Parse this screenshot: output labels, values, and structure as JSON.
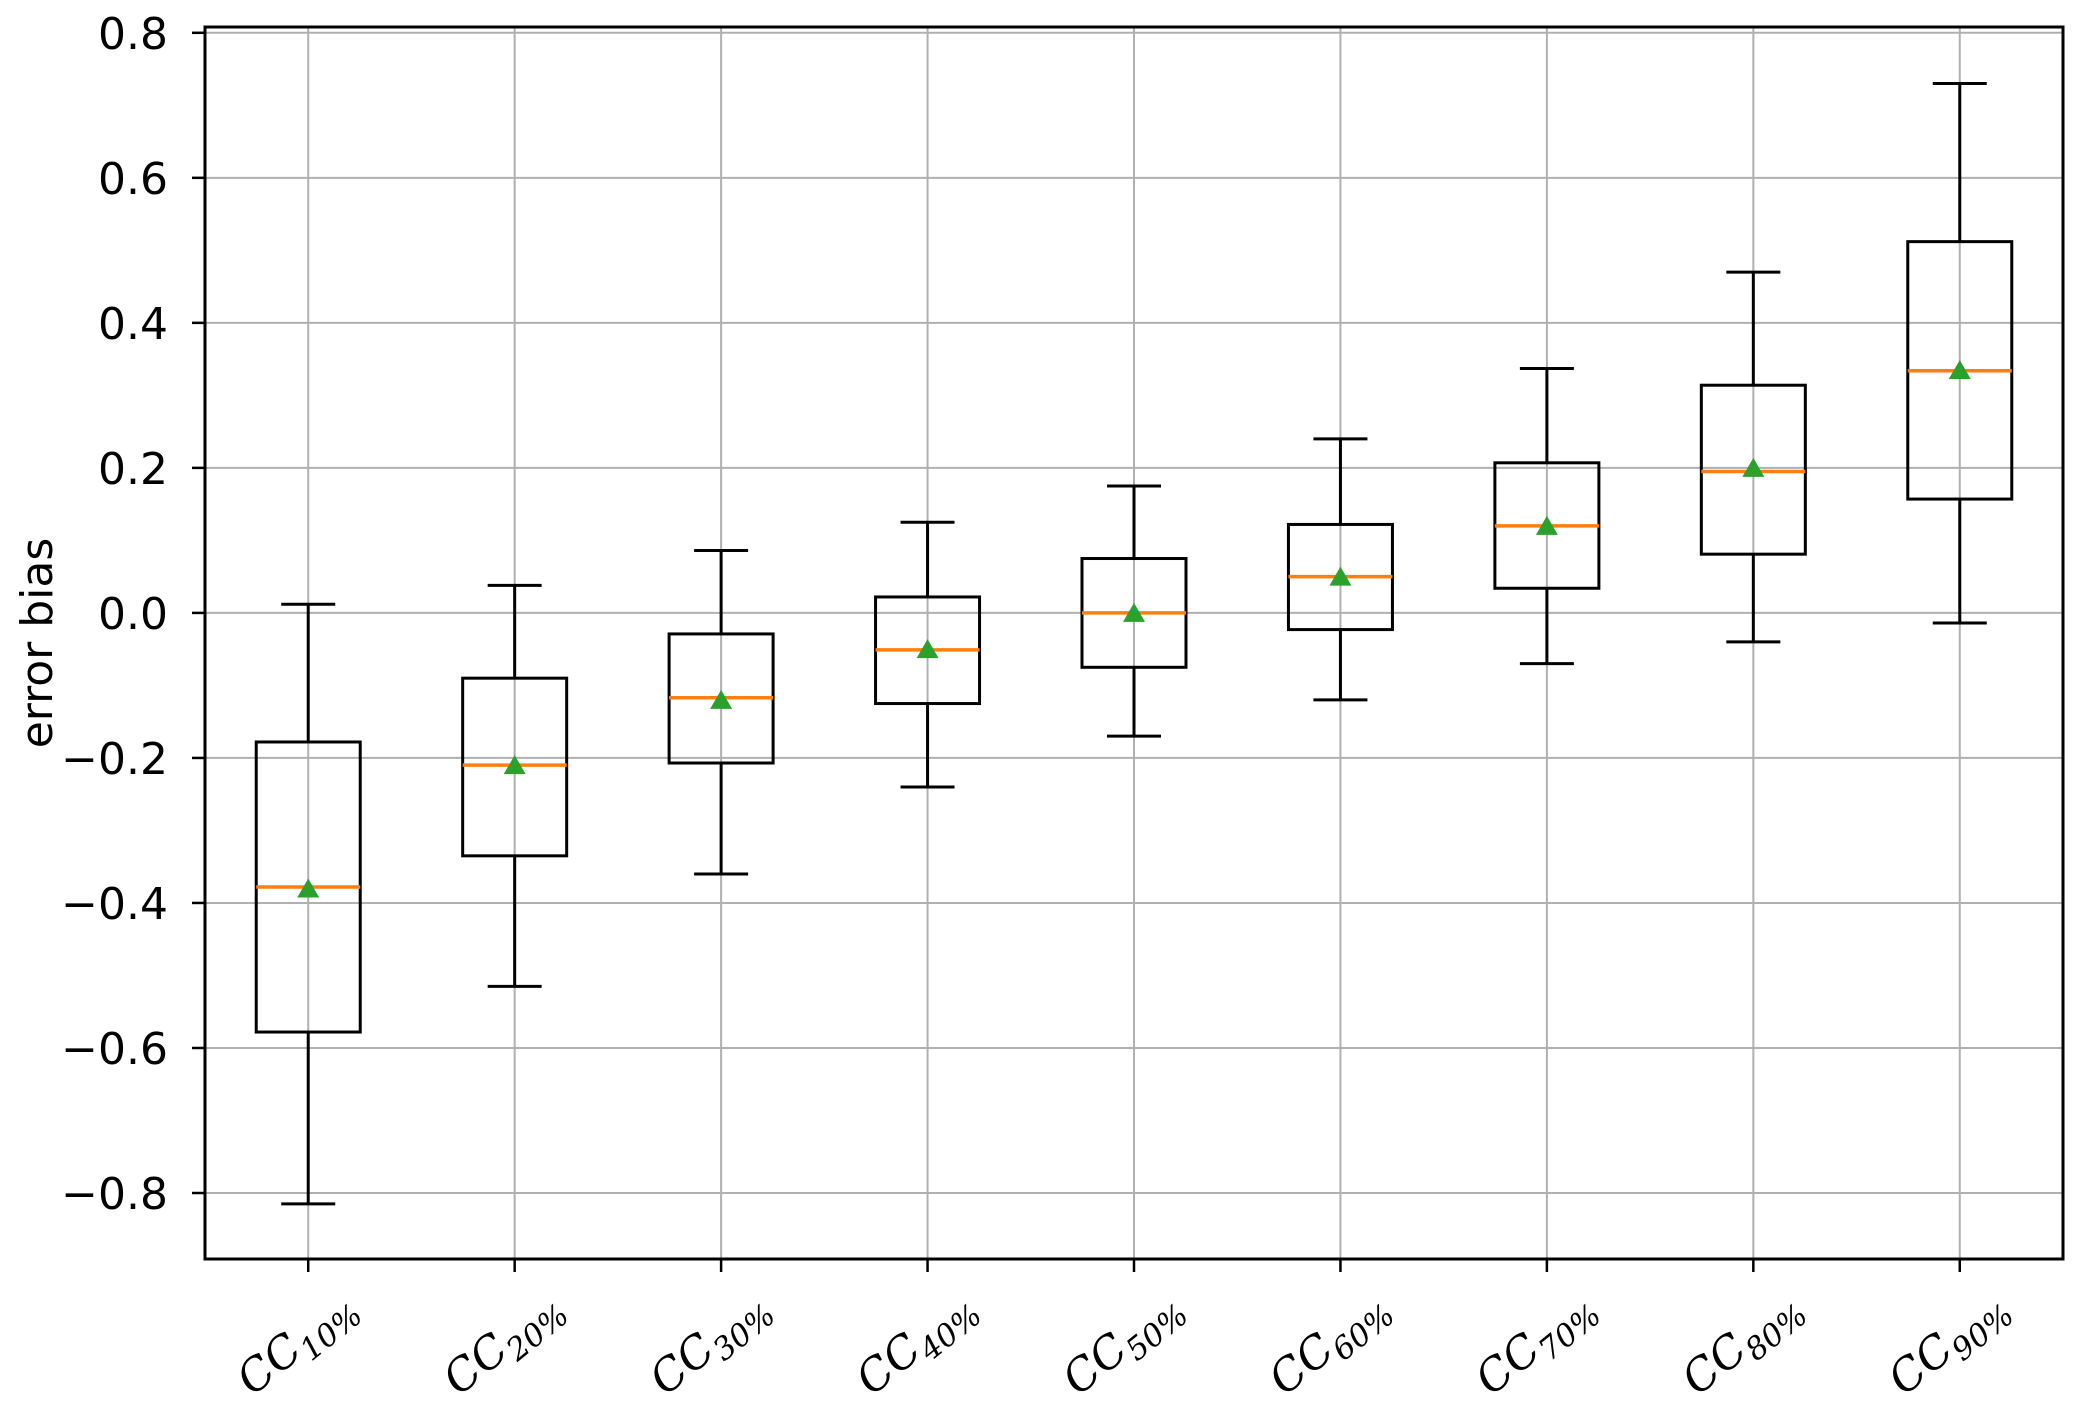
{
  "chart_data": {
    "type": "boxplot",
    "title": "",
    "xlabel": "",
    "ylabel": "error bias",
    "grid": true,
    "legend_position": "none",
    "ylim": [
      -0.891,
      0.808
    ],
    "xlim": [
      0.5,
      9.5
    ],
    "yticks": [
      0.8,
      0.6,
      0.4,
      0.2,
      0.0,
      -0.2,
      -0.4,
      -0.6,
      -0.8
    ],
    "ytick_labels": [
      "0.8",
      "0.6",
      "0.4",
      "0.2",
      "0.0",
      "−0.2",
      "−0.4",
      "−0.6",
      "−0.8"
    ],
    "categories": [
      "CC10%",
      "CC20%",
      "CC30%",
      "CC40%",
      "CC50%",
      "CC60%",
      "CC70%",
      "CC80%",
      "CC90%"
    ],
    "xtick_rotation_deg": 39,
    "boxes": [
      {
        "label_base": "CC",
        "label_sub": "10%",
        "whislo": -0.815,
        "q1": -0.578,
        "med": -0.378,
        "q3": -0.178,
        "whishi": 0.012,
        "mean": -0.38
      },
      {
        "label_base": "CC",
        "label_sub": "20%",
        "whislo": -0.515,
        "q1": -0.335,
        "med": -0.21,
        "q3": -0.09,
        "whishi": 0.038,
        "mean": -0.21
      },
      {
        "label_base": "CC",
        "label_sub": "30%",
        "whislo": -0.36,
        "q1": -0.207,
        "med": -0.117,
        "q3": -0.029,
        "whishi": 0.086,
        "mean": -0.12
      },
      {
        "label_base": "CC",
        "label_sub": "40%",
        "whislo": -0.24,
        "q1": -0.125,
        "med": -0.051,
        "q3": 0.022,
        "whishi": 0.125,
        "mean": -0.05
      },
      {
        "label_base": "CC",
        "label_sub": "50%",
        "whislo": -0.17,
        "q1": -0.075,
        "med": 0.0,
        "q3": 0.075,
        "whishi": 0.175,
        "mean": 0.0
      },
      {
        "label_base": "CC",
        "label_sub": "60%",
        "whislo": -0.12,
        "q1": -0.023,
        "med": 0.05,
        "q3": 0.122,
        "whishi": 0.24,
        "mean": 0.05
      },
      {
        "label_base": "CC",
        "label_sub": "70%",
        "whislo": -0.07,
        "q1": 0.034,
        "med": 0.12,
        "q3": 0.207,
        "whishi": 0.337,
        "mean": 0.12
      },
      {
        "label_base": "CC",
        "label_sub": "80%",
        "whislo": -0.04,
        "q1": 0.081,
        "med": 0.195,
        "q3": 0.314,
        "whishi": 0.47,
        "mean": 0.2
      },
      {
        "label_base": "CC",
        "label_sub": "90%",
        "whislo": -0.014,
        "q1": 0.157,
        "med": 0.334,
        "q3": 0.512,
        "whishi": 0.73,
        "mean": 0.335
      }
    ],
    "mean_marker": "triangle-up",
    "colors": {
      "box": "#000000",
      "whisker": "#000000",
      "median": "#ff7f0e",
      "mean": "#2ca02c",
      "grid": "#b0b0b0",
      "spine": "#000000",
      "text": "#000000",
      "background": "#ffffff"
    }
  }
}
